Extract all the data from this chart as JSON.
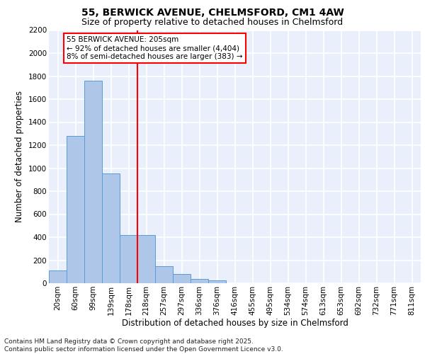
{
  "title_line1": "55, BERWICK AVENUE, CHELMSFORD, CM1 4AW",
  "title_line2": "Size of property relative to detached houses in Chelmsford",
  "xlabel": "Distribution of detached houses by size in Chelmsford",
  "ylabel": "Number of detached properties",
  "categories": [
    "20sqm",
    "60sqm",
    "99sqm",
    "139sqm",
    "178sqm",
    "218sqm",
    "257sqm",
    "297sqm",
    "336sqm",
    "376sqm",
    "416sqm",
    "455sqm",
    "495sqm",
    "534sqm",
    "574sqm",
    "613sqm",
    "653sqm",
    "692sqm",
    "732sqm",
    "771sqm",
    "811sqm"
  ],
  "values": [
    110,
    1280,
    1760,
    955,
    420,
    420,
    150,
    80,
    40,
    25,
    0,
    0,
    0,
    0,
    0,
    0,
    0,
    0,
    0,
    0,
    0
  ],
  "bar_color": "#aec6e8",
  "bar_edge_color": "#5b9bd5",
  "vline_index": 4.5,
  "vline_color": "red",
  "annotation_line1": "55 BERWICK AVENUE: 205sqm",
  "annotation_line2": "← 92% of detached houses are smaller (4,404)",
  "annotation_line3": "8% of semi-detached houses are larger (383) →",
  "annotation_box_color": "white",
  "annotation_box_edge_color": "red",
  "ylim_max": 2200,
  "yticks": [
    0,
    200,
    400,
    600,
    800,
    1000,
    1200,
    1400,
    1600,
    1800,
    2000,
    2200
  ],
  "bg_color": "#eaf0fb",
  "grid_color": "white",
  "footer_line1": "Contains HM Land Registry data © Crown copyright and database right 2025.",
  "footer_line2": "Contains public sector information licensed under the Open Government Licence v3.0.",
  "title_fontsize": 10,
  "subtitle_fontsize": 9,
  "axis_label_fontsize": 8.5,
  "tick_fontsize": 7.5,
  "annotation_fontsize": 7.5,
  "footer_fontsize": 6.5
}
